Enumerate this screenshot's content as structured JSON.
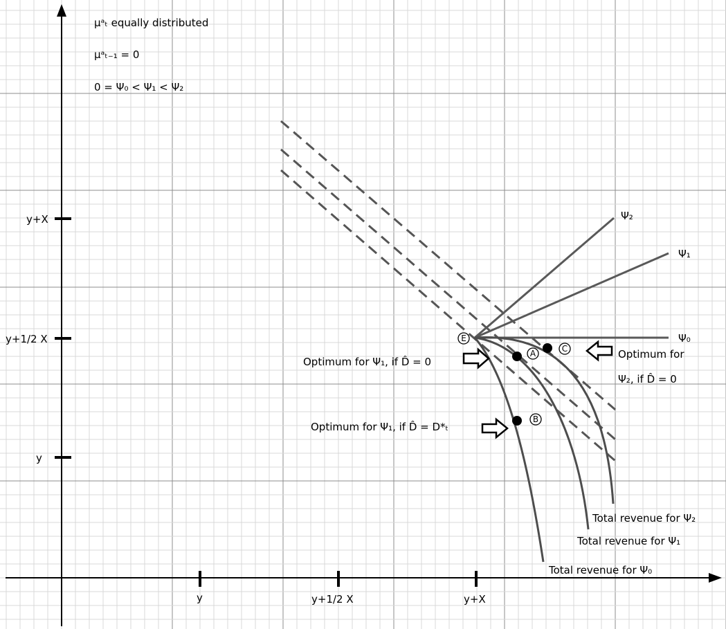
{
  "notes": [
    "μᵃₜ equally distributed",
    "μᵃₜ₋₁ = 0",
    "0 = Ψ₀ < Ψ₁ < Ψ₂"
  ],
  "y_axis_ticks": [
    "y+X",
    "y+1/2 X",
    "y"
  ],
  "x_axis_ticks": [
    "y",
    "y+1/2 X",
    "y+X"
  ],
  "lines": {
    "psi2": "Ψ₂",
    "psi1": "Ψ₁",
    "psi0": "Ψ₀"
  },
  "revenue_labels": {
    "psi2": "Total revenue for Ψ₂",
    "psi1": "Total revenue for Ψ₁",
    "psi0": "Total revenue for Ψ₀"
  },
  "points": {
    "E": "E",
    "A": "A",
    "B": "B",
    "C": "C"
  },
  "callouts": {
    "a": "Optimum for Ψ₁, if D̂ = 0",
    "b": "Optimum for Ψ₁, if D̂ = D*ₜ",
    "c_line1": "Optimum for",
    "c_line2": "Ψ₂, if D̂ = 0"
  }
}
